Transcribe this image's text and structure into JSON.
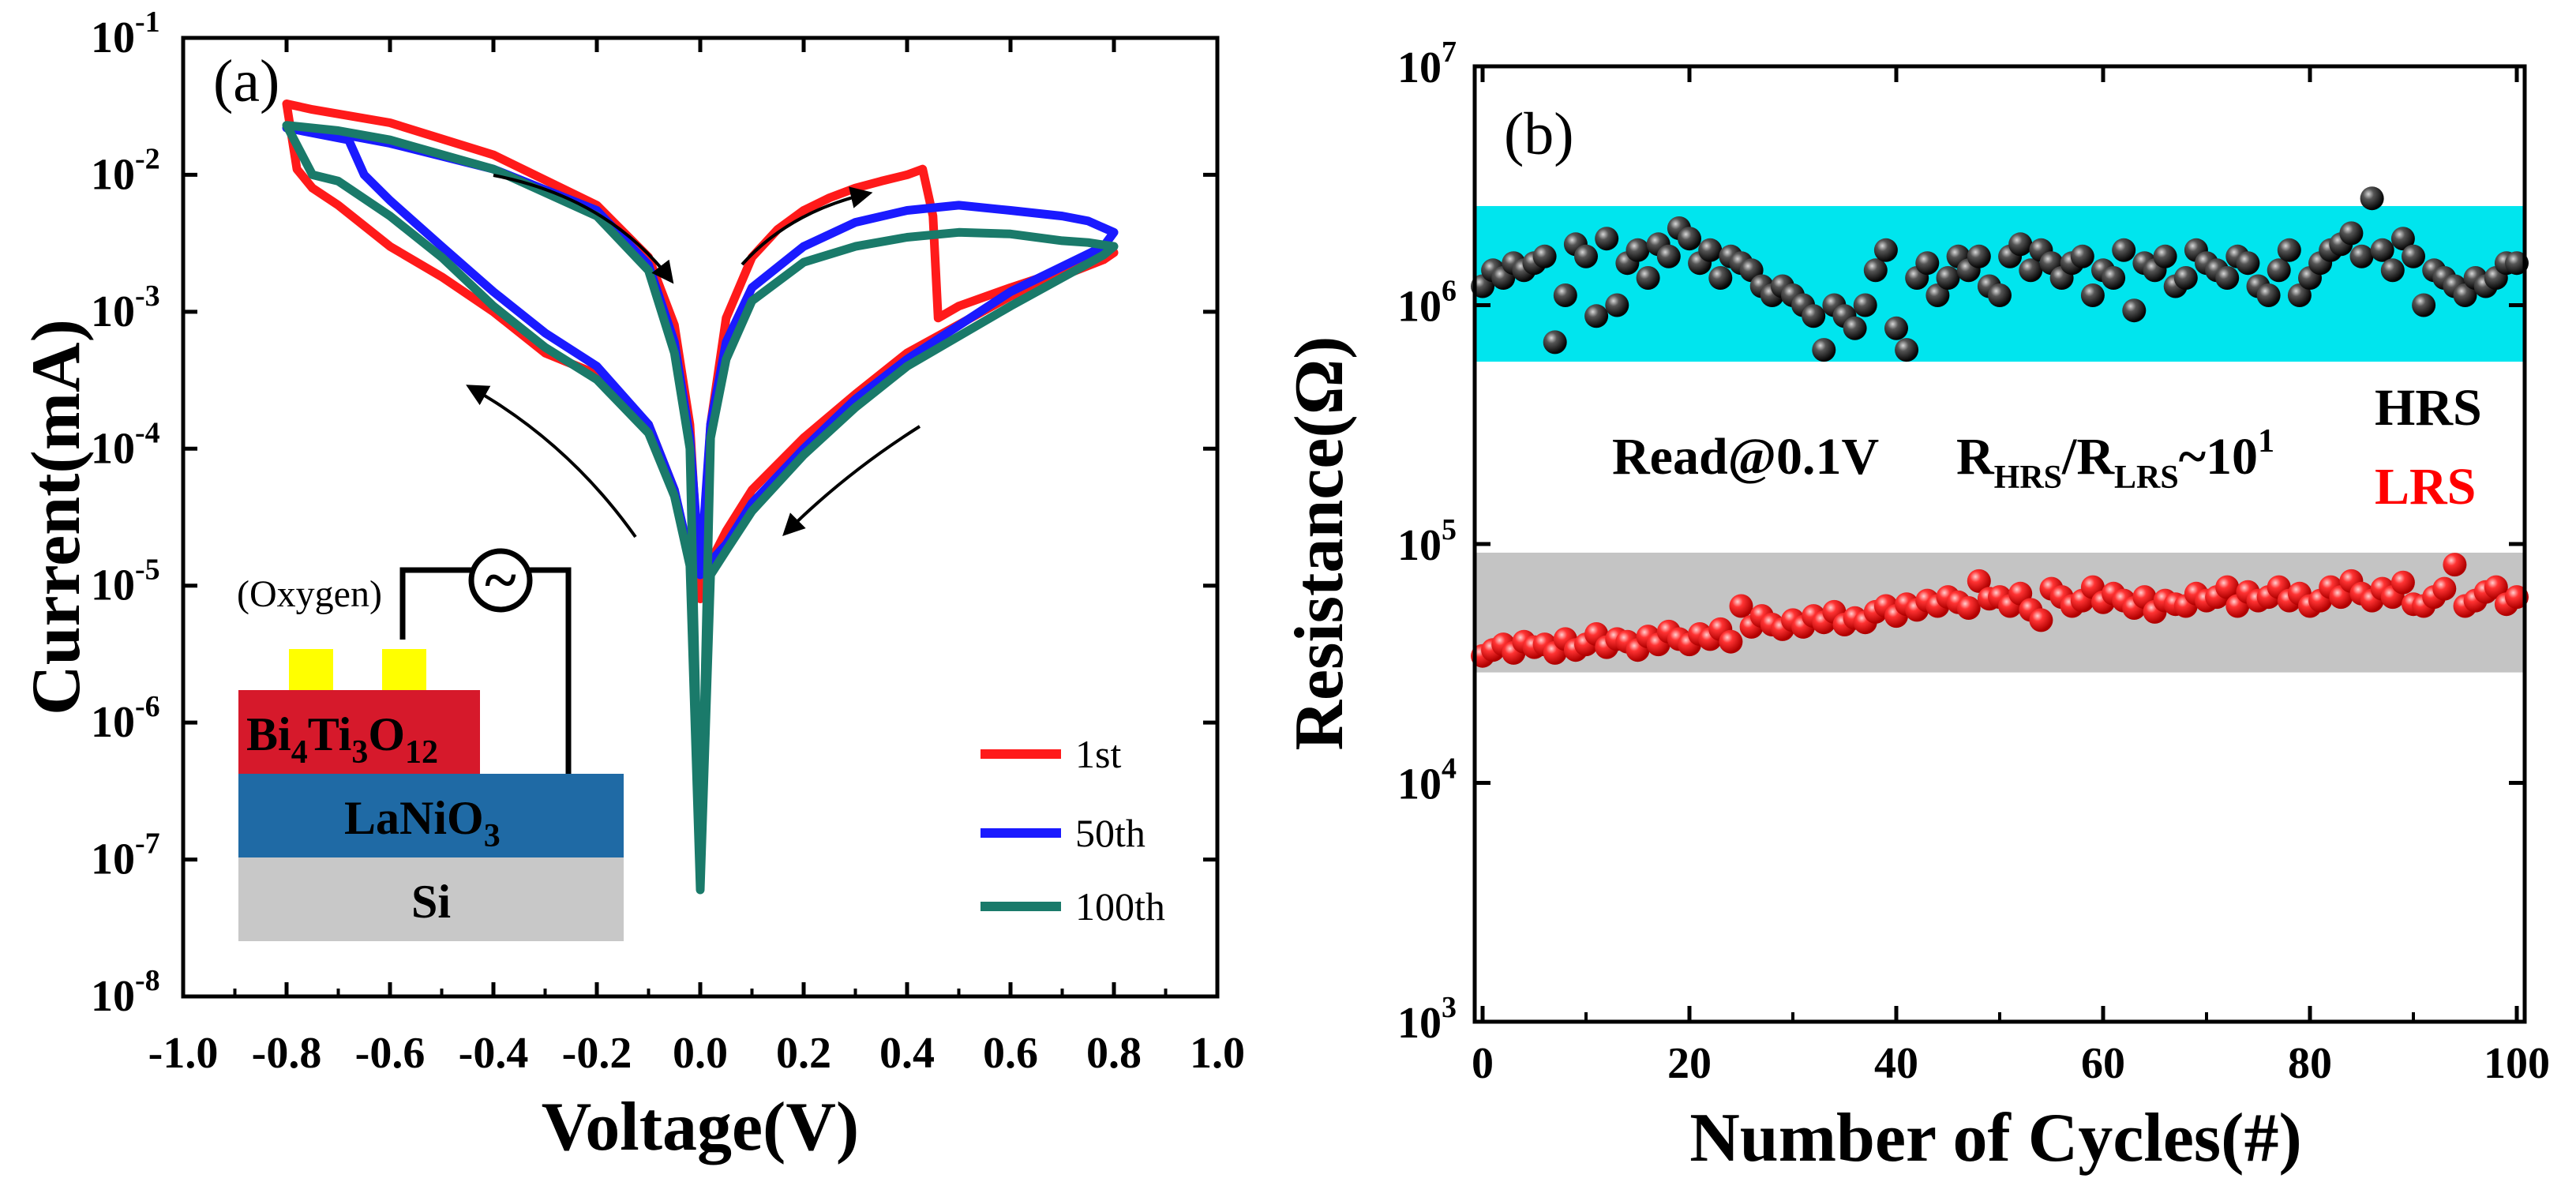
{
  "chart_data": [
    {
      "type": "line",
      "panel_label": "(a)",
      "xlabel": "Voltage(V)",
      "ylabel": "Current(mA)",
      "xlim": [
        -1.0,
        1.0
      ],
      "ylim_log10": [
        -8,
        -1
      ],
      "y_scale": "log",
      "x_ticks": [
        "-1.0",
        "-0.8",
        "-0.6",
        "-0.4",
        "-0.2",
        "0.0",
        "0.2",
        "0.4",
        "0.6",
        "0.8",
        "1.0"
      ],
      "x_tick_values": [
        -1.0,
        -0.8,
        -0.6,
        -0.4,
        -0.2,
        0.0,
        0.2,
        0.4,
        0.6,
        0.8,
        1.0
      ],
      "y_tick_exponents": [
        "-8",
        "-7",
        "-6",
        "-5",
        "-4",
        "-3",
        "-2",
        "-1"
      ],
      "y_tick_base": "10",
      "legend_position": "bottom-right",
      "series": [
        {
          "name": "1st",
          "color": "#ff1a1a",
          "x": [
            0.0,
            0.02,
            0.05,
            0.1,
            0.15,
            0.2,
            0.25,
            0.3,
            0.35,
            0.4,
            0.43,
            0.45,
            0.46,
            0.5,
            0.6,
            0.7,
            0.8,
            0.78,
            0.6,
            0.4,
            0.3,
            0.2,
            0.1,
            0.05,
            0.02,
            0.0,
            -0.02,
            -0.05,
            -0.1,
            -0.2,
            -0.3,
            -0.4,
            -0.5,
            -0.6,
            -0.7,
            -0.75,
            -0.78,
            -0.8,
            -0.75,
            -0.6,
            -0.4,
            -0.2,
            -0.1,
            -0.05,
            -0.02,
            0.0
          ],
          "y": [
            8e-06,
            0.00015,
            0.0009,
            0.0025,
            0.004,
            0.0055,
            0.0068,
            0.008,
            0.009,
            0.01,
            0.011,
            0.005,
            0.0009,
            0.0011,
            0.0015,
            0.002,
            0.0027,
            0.0024,
            0.0013,
            0.0005,
            0.00025,
            0.00012,
            5e-05,
            2.5e-05,
            1.5e-05,
            8e-06,
            1.5e-05,
            5e-05,
            0.00015,
            0.00035,
            0.0005,
            0.001,
            0.0018,
            0.003,
            0.006,
            0.008,
            0.011,
            0.033,
            0.03,
            0.024,
            0.014,
            0.006,
            0.0025,
            0.0008,
            0.00015,
            8e-06
          ]
        },
        {
          "name": "50th",
          "color": "#1a1aff",
          "x": [
            0.0,
            0.02,
            0.05,
            0.1,
            0.2,
            0.3,
            0.4,
            0.5,
            0.6,
            0.7,
            0.75,
            0.8,
            0.78,
            0.6,
            0.4,
            0.3,
            0.2,
            0.1,
            0.05,
            0.02,
            0.0,
            -0.02,
            -0.05,
            -0.1,
            -0.2,
            -0.3,
            -0.4,
            -0.5,
            -0.6,
            -0.65,
            -0.68,
            -0.8,
            -0.7,
            -0.6,
            -0.4,
            -0.2,
            -0.1,
            -0.05,
            -0.02,
            0.0
          ],
          "y": [
            1.2e-05,
            0.00015,
            0.0006,
            0.0015,
            0.003,
            0.0045,
            0.0055,
            0.006,
            0.0055,
            0.005,
            0.0046,
            0.0038,
            0.003,
            0.0014,
            0.00045,
            0.00023,
            0.0001,
            4e-05,
            2e-05,
            1.5e-05,
            1.2e-05,
            1.6e-05,
            5e-05,
            0.00015,
            0.0004,
            0.0007,
            0.0014,
            0.003,
            0.0065,
            0.01,
            0.018,
            0.022,
            0.02,
            0.017,
            0.011,
            0.0055,
            0.0022,
            0.0006,
            0.00012,
            1.2e-05
          ]
        },
        {
          "name": "100th",
          "color": "#1a7a6a",
          "x": [
            0.0,
            0.02,
            0.05,
            0.1,
            0.2,
            0.3,
            0.4,
            0.5,
            0.6,
            0.7,
            0.75,
            0.8,
            0.78,
            0.6,
            0.4,
            0.3,
            0.2,
            0.1,
            0.05,
            0.02,
            0.0,
            -0.02,
            -0.05,
            -0.1,
            -0.2,
            -0.3,
            -0.4,
            -0.5,
            -0.6,
            -0.7,
            -0.75,
            -0.8,
            -0.7,
            -0.6,
            -0.4,
            -0.2,
            -0.1,
            -0.05,
            -0.02,
            0.0
          ],
          "y": [
            6e-08,
            0.00012,
            0.00045,
            0.0012,
            0.0023,
            0.003,
            0.0035,
            0.0038,
            0.0037,
            0.0033,
            0.0032,
            0.003,
            0.0026,
            0.0011,
            0.0004,
            0.0002,
            9e-05,
            3.5e-05,
            1.8e-05,
            1.2e-05,
            6e-08,
            1.4e-05,
            4.5e-05,
            0.00013,
            0.00032,
            0.00055,
            0.0011,
            0.0025,
            0.005,
            0.009,
            0.01,
            0.023,
            0.021,
            0.018,
            0.011,
            0.005,
            0.002,
            0.0005,
            0.0001,
            6e-08
          ]
        }
      ],
      "inset": {
        "label_oxygen": "(Oxygen)",
        "source_symbol": "~",
        "layer_top": "Bi4Ti3O12",
        "layer_top_parts": {
          "main1": "Bi",
          "sub1": "4",
          "main2": "Ti",
          "sub2": "3",
          "main3": "O",
          "sub3": "12"
        },
        "layer_mid_parts": {
          "main": "LaNiO",
          "sub": "3"
        },
        "layer_bottom": "Si",
        "colors": {
          "electrode": "#ffff00",
          "bto": "#d6192b",
          "lno": "#1f6aa5",
          "si": "#c8c8c8"
        }
      }
    },
    {
      "type": "scatter",
      "panel_label": "(b)",
      "xlabel": "Number of Cycles(#)",
      "ylabel": "Resistance(Ω)",
      "xlim": [
        0,
        100
      ],
      "ylim_log10": [
        3,
        7
      ],
      "y_scale": "log",
      "x_ticks": [
        "0",
        "20",
        "40",
        "60",
        "80",
        "100"
      ],
      "x_tick_values": [
        0,
        20,
        40,
        60,
        80,
        100
      ],
      "y_tick_exponents": [
        "3",
        "4",
        "5",
        "6",
        "7"
      ],
      "y_tick_base": "10",
      "bands": [
        {
          "name": "HRS band",
          "range": [
            580000,
            2600000
          ],
          "color": "#00e5ee"
        },
        {
          "name": "LRS band",
          "range": [
            29000,
            92000
          ],
          "color": "#c4c4c4"
        }
      ],
      "annotation": {
        "read": "Read@0.1V",
        "ratio_r1": "R",
        "ratio_sub1": "HRS",
        "ratio_slash": "/R",
        "ratio_sub2": "LRS",
        "ratio_tilde": "~10",
        "ratio_sup": "1"
      },
      "legend": [
        {
          "name": "HRS",
          "color": "#000000"
        },
        {
          "name": "LRS",
          "color": "#ff0000"
        }
      ],
      "series": [
        {
          "name": "HRS",
          "color": "#000000",
          "x": [
            0,
            1,
            2,
            3,
            4,
            5,
            6,
            7,
            8,
            9,
            10,
            11,
            12,
            13,
            14,
            15,
            16,
            17,
            18,
            19,
            20,
            21,
            22,
            23,
            24,
            25,
            26,
            27,
            28,
            29,
            30,
            31,
            32,
            33,
            34,
            35,
            36,
            37,
            38,
            39,
            40,
            41,
            42,
            43,
            44,
            45,
            46,
            47,
            48,
            49,
            50,
            51,
            52,
            53,
            54,
            55,
            56,
            57,
            58,
            59,
            60,
            61,
            62,
            63,
            64,
            65,
            66,
            67,
            68,
            69,
            70,
            71,
            72,
            73,
            74,
            75,
            76,
            77,
            78,
            79,
            80,
            81,
            82,
            83,
            84,
            85,
            86,
            87,
            88,
            89,
            90,
            91,
            92,
            93,
            94,
            95,
            96,
            97,
            98,
            99,
            100
          ],
          "y": [
            1200000,
            1400000,
            1300000,
            1500000,
            1400000,
            1500000,
            1600000,
            700000,
            1100000,
            1800000,
            1600000,
            900000,
            1900000,
            1000000,
            1500000,
            1700000,
            1300000,
            1800000,
            1600000,
            2100000,
            1900000,
            1500000,
            1700000,
            1300000,
            1600000,
            1500000,
            1400000,
            1200000,
            1100000,
            1200000,
            1100000,
            1000000,
            900000,
            650000,
            1000000,
            900000,
            800000,
            1000000,
            1400000,
            1700000,
            800000,
            650000,
            1300000,
            1500000,
            1100000,
            1300000,
            1600000,
            1400000,
            1600000,
            1200000,
            1100000,
            1600000,
            1800000,
            1400000,
            1700000,
            1500000,
            1300000,
            1500000,
            1600000,
            1100000,
            1400000,
            1300000,
            1700000,
            950000,
            1500000,
            1400000,
            1600000,
            1200000,
            1300000,
            1700000,
            1500000,
            1400000,
            1300000,
            1600000,
            1500000,
            1200000,
            1100000,
            1400000,
            1700000,
            1100000,
            1300000,
            1500000,
            1700000,
            1800000,
            2000000,
            1600000,
            2800000,
            1700000,
            1400000,
            1900000,
            1600000,
            1000000,
            1400000,
            1300000,
            1200000,
            1100000,
            1300000,
            1200000,
            1300000,
            1500000,
            1500000
          ]
        },
        {
          "name": "LRS",
          "color": "#ff0000",
          "x": [
            0,
            1,
            2,
            3,
            4,
            5,
            6,
            7,
            8,
            9,
            10,
            11,
            12,
            13,
            14,
            15,
            16,
            17,
            18,
            19,
            20,
            21,
            22,
            23,
            24,
            25,
            26,
            27,
            28,
            29,
            30,
            31,
            32,
            33,
            34,
            35,
            36,
            37,
            38,
            39,
            40,
            41,
            42,
            43,
            44,
            45,
            46,
            47,
            48,
            49,
            50,
            51,
            52,
            53,
            54,
            55,
            56,
            57,
            58,
            59,
            60,
            61,
            62,
            63,
            64,
            65,
            66,
            67,
            68,
            69,
            70,
            71,
            72,
            73,
            74,
            75,
            76,
            77,
            78,
            79,
            80,
            81,
            82,
            83,
            84,
            85,
            86,
            87,
            88,
            89,
            90,
            91,
            92,
            93,
            94,
            95,
            96,
            97,
            98,
            99,
            100
          ],
          "y": [
            34000,
            36000,
            38000,
            35000,
            39000,
            37000,
            38000,
            35000,
            40000,
            36000,
            38000,
            42000,
            37000,
            40000,
            39000,
            36000,
            41000,
            38000,
            43000,
            40000,
            38000,
            42000,
            40000,
            44000,
            39000,
            55000,
            45000,
            50000,
            46000,
            44000,
            48000,
            45000,
            50000,
            47000,
            52000,
            46000,
            49000,
            47000,
            52000,
            55000,
            50000,
            56000,
            53000,
            58000,
            55000,
            60000,
            57000,
            54000,
            70000,
            59000,
            60000,
            55000,
            62000,
            53000,
            48000,
            65000,
            60000,
            55000,
            58000,
            66000,
            57000,
            62000,
            58000,
            54000,
            60000,
            52000,
            58000,
            56000,
            55000,
            62000,
            58000,
            60000,
            66000,
            55000,
            63000,
            58000,
            60000,
            66000,
            58000,
            62000,
            55000,
            58000,
            66000,
            60000,
            70000,
            62000,
            58000,
            65000,
            60000,
            69000,
            56000,
            55000,
            60000,
            65000,
            82000,
            55000,
            58000,
            63000,
            66000,
            56000,
            60000
          ]
        }
      ]
    }
  ]
}
